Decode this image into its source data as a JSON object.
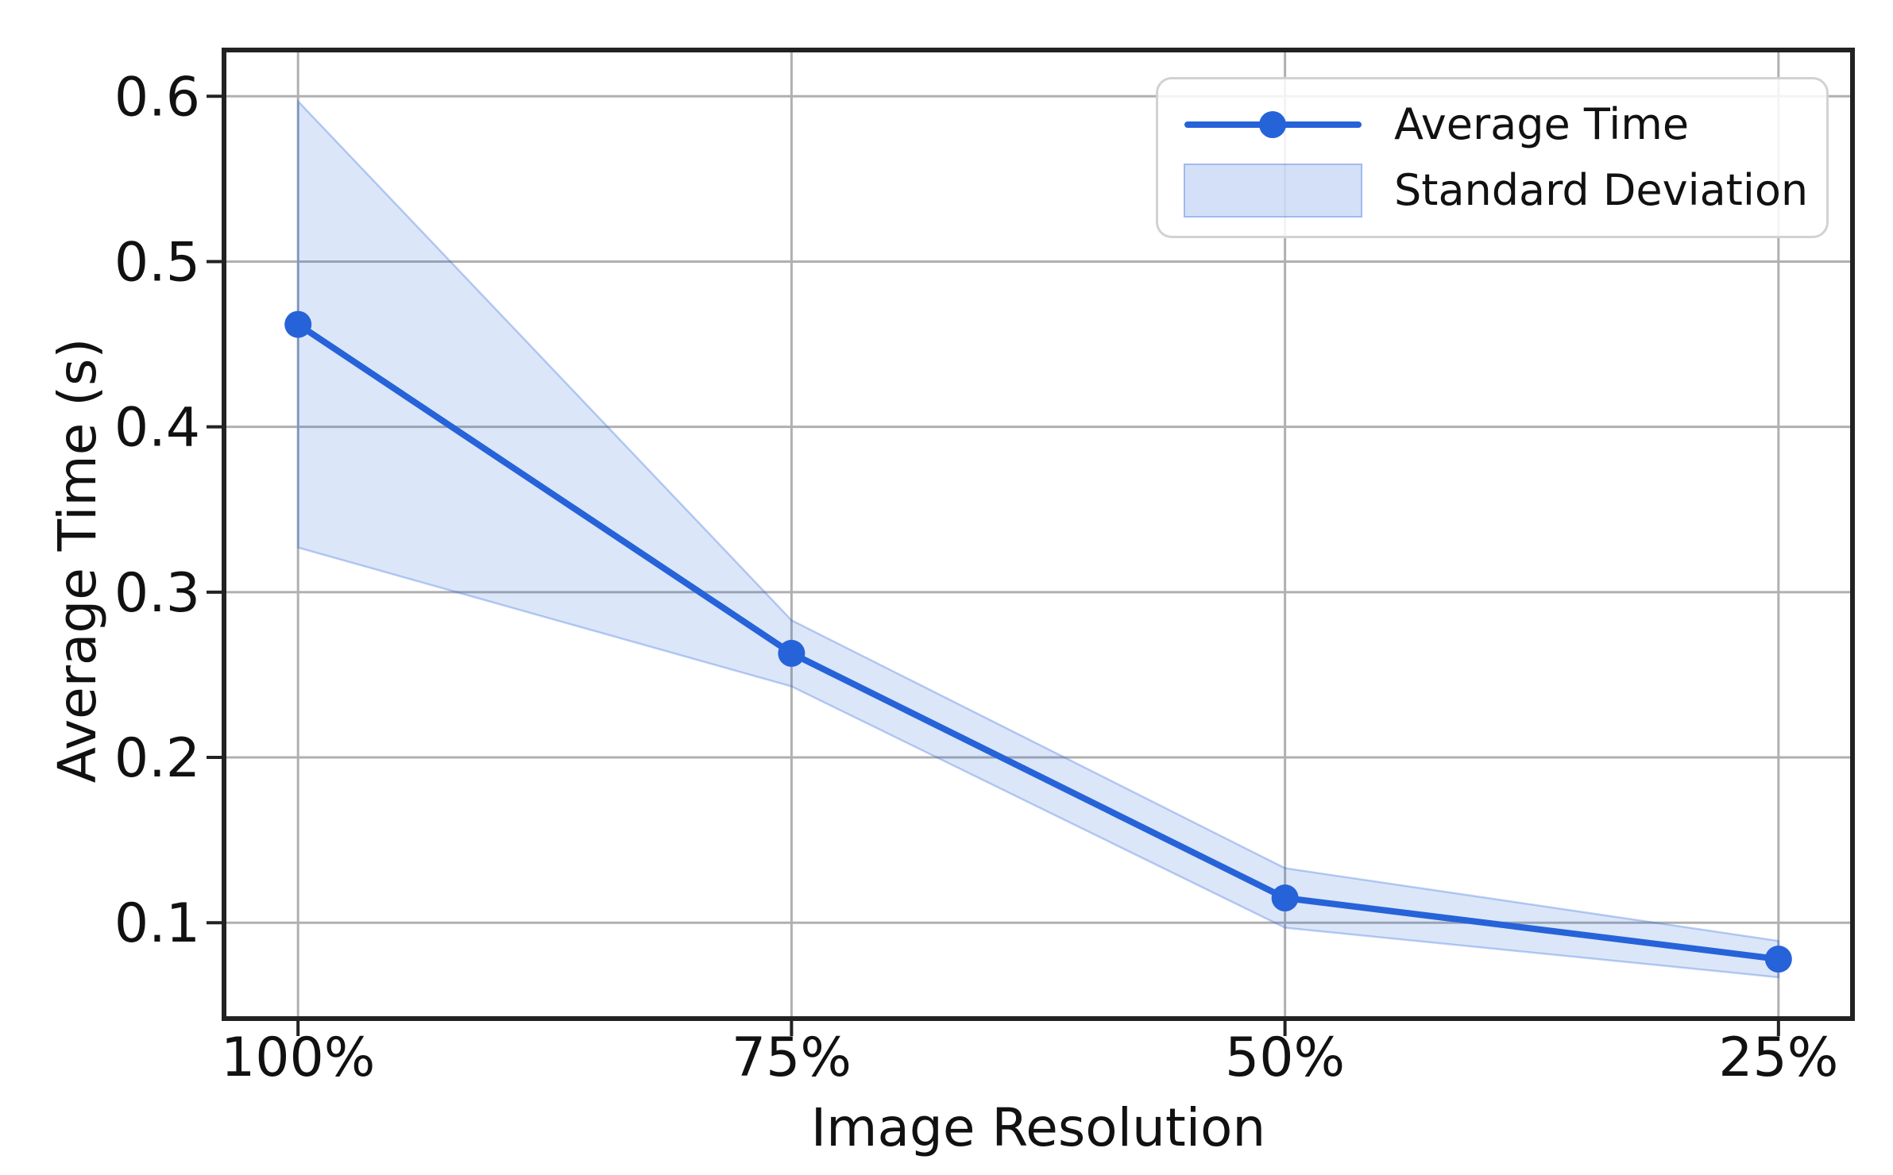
{
  "chart_data": {
    "type": "line",
    "title": "",
    "xlabel": "Image Resolution",
    "ylabel": "Average Time (s)",
    "categories": [
      "100%",
      "75%",
      "50%",
      "25%"
    ],
    "series": [
      {
        "name": "Average Time",
        "values": [
          0.462,
          0.263,
          0.115,
          0.078
        ]
      },
      {
        "name": "Standard Deviation",
        "stds": [
          0.135,
          0.02,
          0.018,
          0.011
        ],
        "band_upper": [
          0.597,
          0.283,
          0.133,
          0.089
        ],
        "band_lower": [
          0.327,
          0.243,
          0.097,
          0.067
        ]
      }
    ],
    "yticks": [
      0.6,
      0.5,
      0.4,
      0.3,
      0.2,
      0.1
    ],
    "yticklabels": [
      "0.6",
      "0.5",
      "0.4",
      "0.3",
      "0.2",
      "0.1"
    ],
    "ylim": [
      0.042,
      0.628
    ],
    "xlim": [
      -0.15,
      3.15
    ],
    "grid": true,
    "legend_position": "upper right",
    "colors": {
      "line": "#2663d9",
      "marker": "#2663d9",
      "band_fill": "rgba(38,99,217,0.16)",
      "band_edge": "rgba(38,99,217,0.30)",
      "band_legend": "rgba(38,99,217,0.20)",
      "grid": "#b0b0b0",
      "spine": "#222222",
      "text": "#111111"
    }
  }
}
